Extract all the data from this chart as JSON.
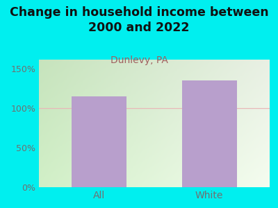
{
  "title": "Change in household income between\n2000 and 2022",
  "subtitle": "Dunlevy, PA",
  "categories": [
    "All",
    "White"
  ],
  "values": [
    115,
    135
  ],
  "bar_color": "#b89fcc",
  "figure_bg": "#00efef",
  "plot_bg_left": "#d8efd0",
  "plot_bg_right": "#f0f8ee",
  "title_fontsize": 12.5,
  "subtitle_fontsize": 10,
  "subtitle_color": "#a06060",
  "tick_label_color": "#707070",
  "yticks": [
    0,
    50,
    100,
    150
  ],
  "ylim": [
    0,
    162
  ],
  "grid_color": "#e8b8b8",
  "title_color": "#111111"
}
